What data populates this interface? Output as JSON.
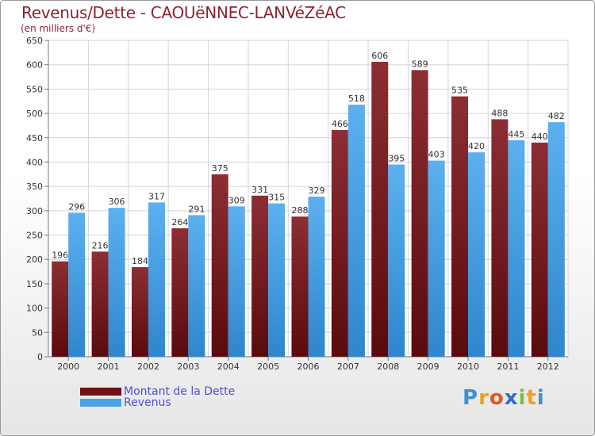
{
  "chart_data": {
    "type": "bar",
    "title": "Revenus/Dette - CAOUëNNEC-LANVéZéAC",
    "subtitle": "(en milliers d'€)",
    "categories": [
      "2000",
      "2001",
      "2002",
      "2003",
      "2004",
      "2005",
      "2006",
      "2007",
      "2008",
      "2009",
      "2010",
      "2011",
      "2012"
    ],
    "series": [
      {
        "name": "Montant de la Dette",
        "color": "#7a1a20",
        "values": [
          196,
          216,
          184,
          264,
          375,
          331,
          288,
          466,
          606,
          589,
          535,
          488,
          440
        ]
      },
      {
        "name": "Revenus",
        "color": "#4aa3e6",
        "values": [
          296,
          306,
          317,
          291,
          309,
          315,
          329,
          518,
          395,
          403,
          420,
          445,
          482
        ]
      }
    ],
    "ylim": [
      0,
      650
    ],
    "ytick_step": 50,
    "grid": true,
    "legend_position": "bottom-left"
  },
  "logo": {
    "letters": [
      "P",
      "r",
      "o",
      "x",
      "i",
      "t",
      "i"
    ],
    "colors": [
      "#3f8fd8",
      "#f0a020",
      "#e05a20",
      "#2e6fc0",
      "#7fbf3f",
      "#f0a020",
      "#3f8fd8"
    ]
  }
}
